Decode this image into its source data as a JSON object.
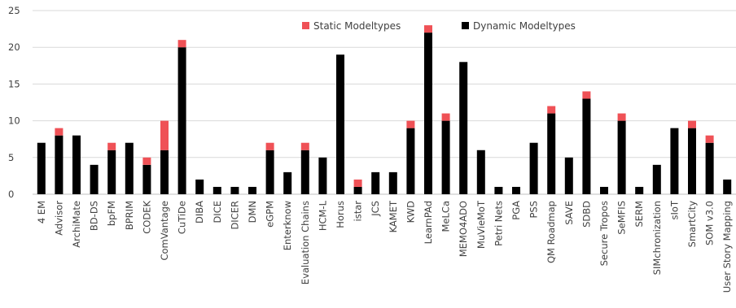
{
  "chart_data": {
    "type": "bar",
    "stacked": true,
    "categories": [
      "4 EM",
      "Advisor",
      "ArchiMate",
      "BD-DS",
      "bpFM",
      "BPRIM",
      "CODEK",
      "ComVantage",
      "CuTiDe",
      "DIBA",
      "DICE",
      "DICER",
      "DMN",
      "eGPM",
      "Enterknow",
      "Evaluation Chains",
      "HCM-L",
      "Horus",
      "istar",
      "JCS",
      "KAMET",
      "KWD",
      "LearnPAd",
      "MeLCa",
      "MEMO4ADO",
      "MuVieMoT",
      "Petri Nets",
      "PGA",
      "PSS",
      "QM Roadmap",
      "SAVE",
      "SDBD",
      "Secure Tropos",
      "SeMFIS",
      "SERM",
      "SIMchronization",
      "sIoT",
      "SmartCity",
      "SOM v3.0",
      "User Story Mapping"
    ],
    "series": [
      {
        "name": "Dynamic Modeltypes",
        "color": "#000000",
        "values": [
          7,
          8,
          8,
          4,
          6,
          7,
          4,
          6,
          20,
          2,
          1,
          1,
          1,
          6,
          3,
          6,
          5,
          19,
          1,
          3,
          3,
          9,
          22,
          10,
          18,
          6,
          1,
          1,
          7,
          11,
          5,
          13,
          1,
          10,
          1,
          4,
          9,
          9,
          7,
          2
        ]
      },
      {
        "name": "Static Modeltypes",
        "color": "#ef5156",
        "values": [
          0,
          1,
          0,
          0,
          1,
          0,
          1,
          4,
          1,
          0,
          0,
          0,
          0,
          1,
          0,
          1,
          0,
          0,
          1,
          0,
          0,
          1,
          1,
          1,
          0,
          0,
          0,
          0,
          0,
          1,
          0,
          1,
          0,
          1,
          0,
          0,
          0,
          1,
          1,
          0
        ]
      }
    ],
    "yticks": [
      0,
      5,
      10,
      15,
      20,
      25
    ],
    "ylim": [
      0,
      25
    ],
    "grid": true,
    "legend": {
      "position": "top-center",
      "order": [
        "Static Modeltypes",
        "Dynamic Modeltypes"
      ]
    },
    "title": "",
    "xlabel": "",
    "ylabel": ""
  }
}
